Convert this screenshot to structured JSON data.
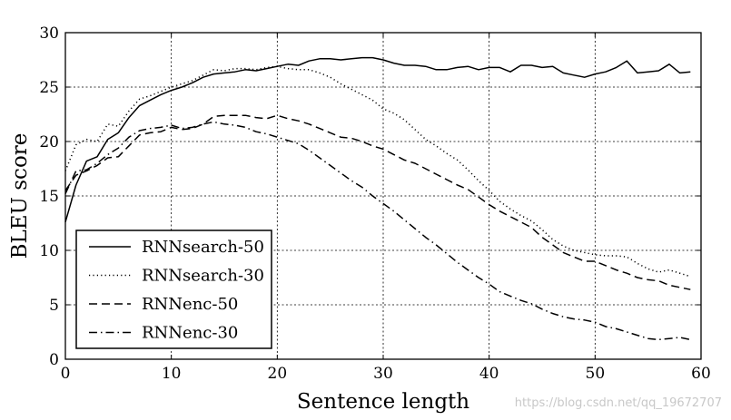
{
  "chart_data": {
    "type": "line",
    "title": "",
    "xlabel": "Sentence length",
    "ylabel": "BLEU score",
    "xlim": [
      0,
      60
    ],
    "ylim": [
      0,
      30
    ],
    "xticks": [
      0,
      10,
      20,
      30,
      40,
      50,
      60
    ],
    "yticks": [
      0,
      5,
      10,
      15,
      20,
      25,
      30
    ],
    "grid": true,
    "legend_position": "lower-left",
    "series": [
      {
        "name": "RNNsearch-50",
        "style": "solid",
        "x": [
          0,
          1,
          2,
          3,
          4,
          5,
          6,
          7,
          8,
          9,
          10,
          11,
          12,
          13,
          14,
          15,
          16,
          17,
          18,
          19,
          20,
          21,
          22,
          23,
          24,
          25,
          26,
          27,
          28,
          29,
          30,
          31,
          32,
          33,
          34,
          35,
          36,
          37,
          38,
          39,
          40,
          41,
          42,
          43,
          44,
          45,
          46,
          47,
          48,
          49,
          50,
          51,
          52,
          53,
          54,
          55,
          56,
          57,
          58,
          59
        ],
        "values": [
          12.6,
          16.0,
          18.2,
          18.6,
          20.2,
          20.8,
          22.2,
          23.3,
          23.8,
          24.3,
          24.7,
          25.0,
          25.4,
          25.9,
          26.2,
          26.3,
          26.4,
          26.6,
          26.5,
          26.7,
          26.9,
          27.1,
          27.0,
          27.4,
          27.6,
          27.6,
          27.5,
          27.6,
          27.7,
          27.7,
          27.5,
          27.2,
          27.0,
          27.0,
          26.9,
          26.6,
          26.6,
          26.8,
          26.9,
          26.6,
          26.8,
          26.8,
          26.4,
          27.0,
          27.0,
          26.8,
          26.9,
          26.3,
          26.1,
          25.9,
          26.2,
          26.4,
          26.8,
          27.4,
          26.3,
          26.4,
          26.5,
          27.1,
          26.3,
          26.4
        ]
      },
      {
        "name": "RNNsearch-30",
        "style": "dotted",
        "x": [
          0,
          1,
          2,
          3,
          4,
          5,
          6,
          7,
          8,
          9,
          10,
          11,
          12,
          13,
          14,
          15,
          16,
          17,
          18,
          19,
          20,
          21,
          22,
          23,
          24,
          25,
          26,
          27,
          28,
          29,
          30,
          31,
          32,
          33,
          34,
          35,
          36,
          37,
          38,
          39,
          40,
          41,
          42,
          43,
          44,
          45,
          46,
          47,
          48,
          49,
          50,
          51,
          52,
          53,
          54,
          55,
          56,
          57,
          58,
          59
        ],
        "values": [
          17.3,
          19.7,
          20.2,
          20.0,
          21.6,
          21.4,
          22.8,
          23.9,
          24.2,
          24.6,
          25.0,
          25.3,
          25.6,
          26.1,
          26.6,
          26.5,
          26.7,
          26.7,
          26.6,
          26.8,
          26.9,
          26.7,
          26.6,
          26.6,
          26.3,
          25.9,
          25.3,
          24.8,
          24.3,
          23.8,
          23.0,
          22.6,
          22.0,
          21.1,
          20.2,
          19.6,
          18.9,
          18.3,
          17.4,
          16.4,
          15.5,
          14.5,
          13.8,
          13.2,
          12.7,
          11.9,
          11.0,
          10.4,
          10.0,
          9.8,
          9.6,
          9.5,
          9.5,
          9.4,
          8.8,
          8.3,
          8.0,
          8.2,
          7.9,
          7.6
        ]
      },
      {
        "name": "RNNenc-50",
        "style": "dashed",
        "x": [
          0,
          1,
          2,
          3,
          4,
          5,
          6,
          7,
          8,
          9,
          10,
          11,
          12,
          13,
          14,
          15,
          16,
          17,
          18,
          19,
          20,
          21,
          22,
          23,
          24,
          25,
          26,
          27,
          28,
          29,
          30,
          31,
          32,
          33,
          34,
          35,
          36,
          37,
          38,
          39,
          40,
          41,
          42,
          43,
          44,
          45,
          46,
          47,
          48,
          49,
          50,
          51,
          52,
          53,
          54,
          55,
          56,
          57,
          58,
          59
        ],
        "values": [
          15.5,
          16.9,
          17.3,
          17.8,
          18.5,
          18.6,
          19.6,
          20.6,
          20.8,
          20.9,
          21.3,
          21.1,
          21.2,
          21.6,
          22.3,
          22.4,
          22.4,
          22.4,
          22.2,
          22.1,
          22.4,
          22.1,
          21.9,
          21.6,
          21.2,
          20.8,
          20.4,
          20.3,
          20.0,
          19.6,
          19.3,
          18.8,
          18.3,
          18.0,
          17.5,
          17.0,
          16.5,
          16.0,
          15.6,
          14.9,
          14.2,
          13.6,
          13.1,
          12.6,
          12.1,
          11.2,
          10.5,
          9.8,
          9.4,
          9.0,
          9.0,
          8.6,
          8.2,
          7.9,
          7.5,
          7.3,
          7.2,
          6.8,
          6.6,
          6.4
        ]
      },
      {
        "name": "RNNenc-30",
        "style": "dashdot",
        "x": [
          0,
          1,
          2,
          3,
          4,
          5,
          6,
          7,
          8,
          9,
          10,
          11,
          12,
          13,
          14,
          15,
          16,
          17,
          18,
          19,
          20,
          21,
          22,
          23,
          24,
          25,
          26,
          27,
          28,
          29,
          30,
          31,
          32,
          33,
          34,
          35,
          36,
          37,
          38,
          39,
          40,
          41,
          42,
          43,
          44,
          45,
          46,
          47,
          48,
          49,
          50,
          51,
          52,
          53,
          54,
          55,
          56,
          57,
          58,
          59
        ],
        "values": [
          15.2,
          17.3,
          17.4,
          18.0,
          18.8,
          19.4,
          20.4,
          21.0,
          21.2,
          21.3,
          21.5,
          21.2,
          21.3,
          21.6,
          21.8,
          21.6,
          21.5,
          21.3,
          20.9,
          20.7,
          20.4,
          20.1,
          19.8,
          19.2,
          18.5,
          17.8,
          17.1,
          16.4,
          15.8,
          15.0,
          14.3,
          13.6,
          12.8,
          12.0,
          11.2,
          10.5,
          9.7,
          8.9,
          8.2,
          7.5,
          6.9,
          6.2,
          5.8,
          5.4,
          5.1,
          4.6,
          4.2,
          3.9,
          3.7,
          3.6,
          3.4,
          3.0,
          2.8,
          2.5,
          2.2,
          1.9,
          1.8,
          1.9,
          2.0,
          1.8
        ]
      }
    ]
  },
  "watermark": "https://blog.csdn.net/qq_19672707"
}
